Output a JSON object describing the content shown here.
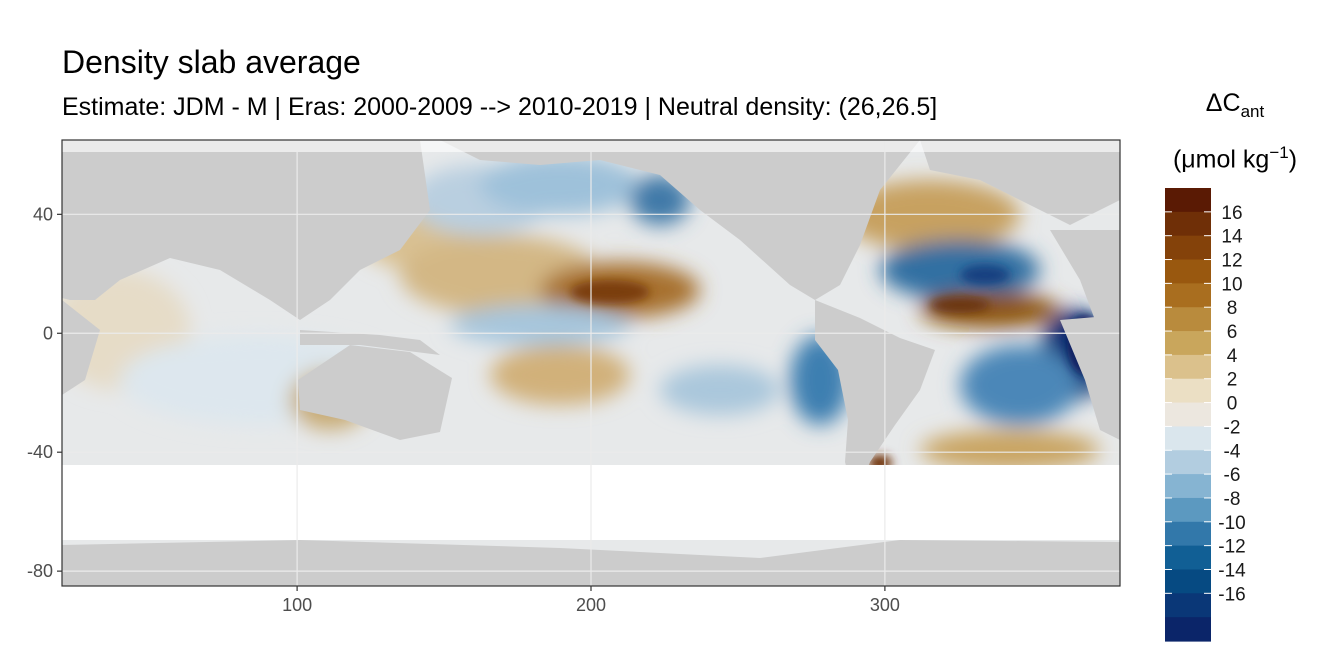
{
  "chart_data": {
    "type": "heatmap",
    "title": "Density slab average",
    "subtitle": "Estimate: JDM - M | Eras: 2000-2009 --> 2010-2019 | Neutral density: (26,26.5]",
    "xlabel": "",
    "ylabel": "",
    "xlim": [
      20,
      380
    ],
    "ylim": [
      -85,
      65
    ],
    "x_ticks": [
      "100",
      "200",
      "300"
    ],
    "x_tick_values": [
      100,
      200,
      300
    ],
    "y_ticks": [
      "40",
      "0",
      "-40",
      "-80"
    ],
    "y_tick_values": [
      40,
      0,
      -40,
      -80
    ],
    "grid": true,
    "legend": {
      "title_main": "ΔC",
      "title_sub": "ant",
      "units_main": "(μmol kg",
      "units_sup": "−1",
      "units_close": ")",
      "placement": "right",
      "labels": [
        "16",
        "14",
        "12",
        "10",
        "8",
        "6",
        "4",
        "2",
        "0",
        "-2",
        "-4",
        "-6",
        "-8",
        "-10",
        "-12",
        "-14",
        "-16"
      ],
      "colors": [
        "#5a1a04",
        "#6f2f07",
        "#84420a",
        "#99580f",
        "#a96e1f",
        "#b98b3d",
        "#c9a65c",
        "#dbc18c",
        "#ebdfc4",
        "#ece7df",
        "#dae6ed",
        "#b2cde0",
        "#86b4d2",
        "#5c99c0",
        "#3278aa",
        "#115f95",
        "#064a82",
        "#0a3777",
        "#0b2569"
      ],
      "land_color": "#cccccc"
    }
  }
}
